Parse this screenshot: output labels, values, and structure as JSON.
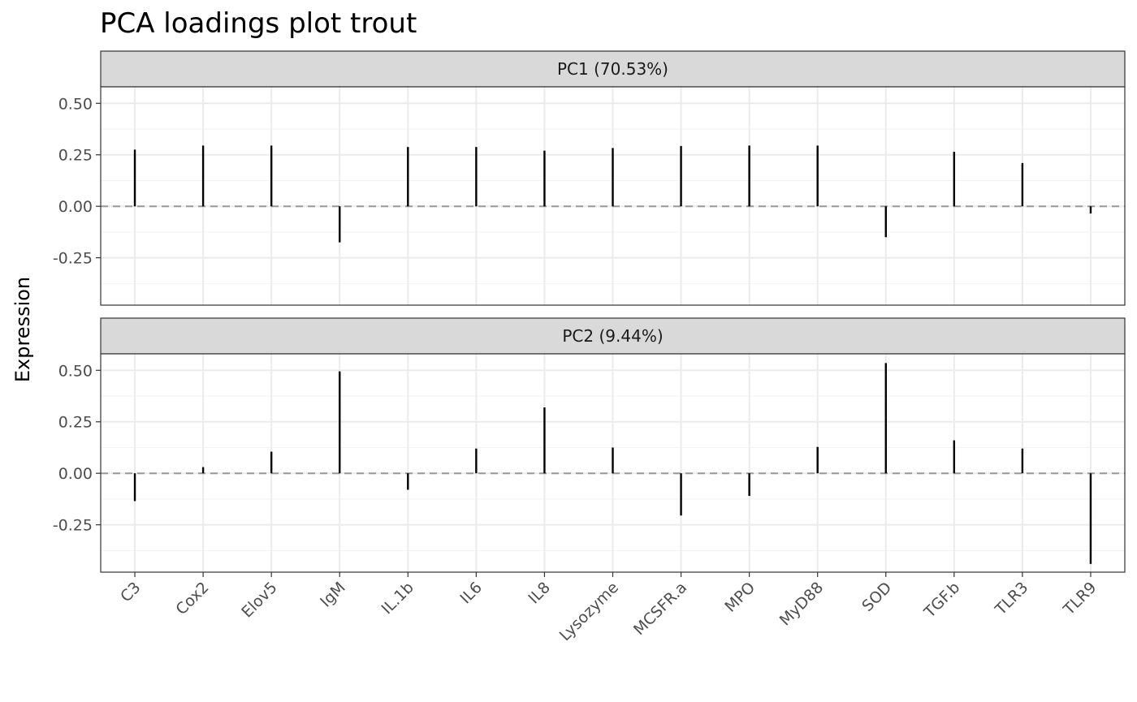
{
  "chart_data": {
    "type": "bar",
    "title": "PCA loadings plot trout",
    "xlabel": "",
    "ylabel": "Expression",
    "categories": [
      "C3",
      "Cox2",
      "Elov5",
      "IgM",
      "IL.1b",
      "IL6",
      "IL8",
      "Lysozyme",
      "MCSFR.a",
      "MPO",
      "MyD88",
      "SOD",
      "TGF.b",
      "TLR3",
      "TLR9"
    ],
    "ylim": [
      -0.48,
      0.58
    ],
    "yticks": [
      -0.25,
      0.0,
      0.25,
      0.5
    ],
    "ytick_labels": [
      "-0.25",
      "0.00",
      "0.25",
      "0.50"
    ],
    "grid": true,
    "reference_line": 0,
    "panels": [
      {
        "strip": "PC1 (70.53%)",
        "values": [
          0.275,
          0.295,
          0.295,
          -0.175,
          0.288,
          0.288,
          0.27,
          0.283,
          0.293,
          0.295,
          0.295,
          -0.15,
          0.265,
          0.21,
          -0.035
        ]
      },
      {
        "strip": "PC2 (9.44%)",
        "values": [
          -0.135,
          0.03,
          0.105,
          0.495,
          -0.08,
          0.12,
          0.32,
          0.125,
          -0.205,
          -0.11,
          0.128,
          0.535,
          0.16,
          0.12,
          -0.44
        ]
      }
    ],
    "colors": {
      "stem": "#000000",
      "zero_line": "#999999",
      "grid_major": "#ebebeb",
      "grid_minor": "#f2f2f2",
      "strip_fill": "#d9d9d9",
      "panel_border": "#333333"
    }
  }
}
